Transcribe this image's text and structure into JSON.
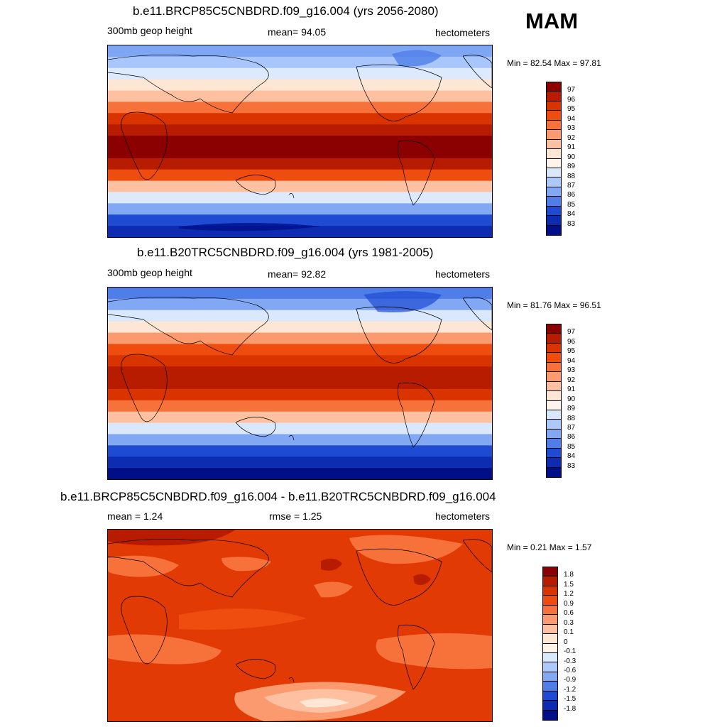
{
  "season": "MAM",
  "panels": [
    {
      "title": "b.e11.BRCP85C5CNBDRD.f09_g16.004 (yrs 2056-2080)",
      "left_label": "300mb geop height",
      "center_label": "mean=  94.05",
      "units": "hectometers",
      "minmax": "Min =  82.54 Max =  97.81",
      "colorbar_labels": [
        "97",
        "96",
        "95",
        "94",
        "93",
        "92",
        "91",
        "90",
        "89",
        "88",
        "87",
        "86",
        "85",
        "84",
        "83"
      ],
      "colorbar_colors": [
        "#8b0000",
        "#b81c00",
        "#d93300",
        "#ef4d10",
        "#f7713a",
        "#fb9a6e",
        "#fdc1a1",
        "#fde6d4",
        "#fff4ea",
        "#d9e8fd",
        "#adc9fb",
        "#82a8f4",
        "#4f7ee8",
        "#1f4bd3",
        "#0d2cb1",
        "#000f88"
      ],
      "colorbar_color_order": "top-to-bottom"
    },
    {
      "title": "b.e11.B20TRC5CNBDRD.f09_g16.004 (yrs 1981-2005)",
      "left_label": "300mb geop height",
      "center_label": "mean=  92.82",
      "units": "hectometers",
      "minmax": "Min =  81.76 Max =  96.51",
      "colorbar_labels": [
        "97",
        "96",
        "95",
        "94",
        "93",
        "92",
        "91",
        "90",
        "89",
        "88",
        "87",
        "86",
        "85",
        "84",
        "83"
      ],
      "colorbar_colors": [
        "#8b0000",
        "#b81c00",
        "#d93300",
        "#ef4d10",
        "#f7713a",
        "#fb9a6e",
        "#fdc1a1",
        "#fde6d4",
        "#fff4ea",
        "#d9e8fd",
        "#adc9fb",
        "#82a8f4",
        "#4f7ee8",
        "#1f4bd3",
        "#0d2cb1",
        "#000f88"
      ],
      "colorbar_color_order": "top-to-bottom"
    },
    {
      "title": "b.e11.BRCP85C5CNBDRD.f09_g16.004 - b.e11.B20TRC5CNBDRD.f09_g16.004",
      "left_label": "mean =   1.24",
      "center_label": "rmse =   1.25",
      "units": "hectometers",
      "minmax": "Min =   0.21 Max =   1.57",
      "colorbar_labels": [
        "1.8",
        "1.5",
        "1.2",
        "0.9",
        "0.6",
        "0.3",
        "0.1",
        "0",
        "-0.1",
        "-0.3",
        "-0.6",
        "-0.9",
        "-1.2",
        "-1.5",
        "-1.8"
      ],
      "colorbar_colors": [
        "#8b0000",
        "#b81c00",
        "#d93300",
        "#ef4d10",
        "#f7713a",
        "#fb9a6e",
        "#fdc1a1",
        "#fde6d4",
        "#fff4ea",
        "#d9e8fd",
        "#adc9fb",
        "#82a8f4",
        "#4f7ee8",
        "#1f4bd3",
        "#0d2cb1",
        "#000f88"
      ],
      "colorbar_color_order": "top-to-bottom"
    }
  ],
  "map_fields": {
    "panel1_bands_north_to_south": [
      "#7fa6f2",
      "#a8c6fb",
      "#dde9fd",
      "#fde6d4",
      "#fdc1a1",
      "#f7713a",
      "#d93300",
      "#b81c00",
      "#8b0000",
      "#8b0000",
      "#b81c00",
      "#ef4d10",
      "#fdc1a1",
      "#dde9fd",
      "#82a8f4",
      "#1f4bd3",
      "#0d2cb1"
    ],
    "panel2_bands_north_to_south": [
      "#4f7ee8",
      "#82a8f4",
      "#d9e8fd",
      "#fde6d4",
      "#fb9a6e",
      "#ef4d10",
      "#d93300",
      "#b81c00",
      "#b81c00",
      "#d93300",
      "#f7713a",
      "#fdc1a1",
      "#d9e8fd",
      "#82a8f4",
      "#1f4bd3",
      "#0d2cb1",
      "#000f88"
    ],
    "panel3_base_color": "#e23a05"
  }
}
